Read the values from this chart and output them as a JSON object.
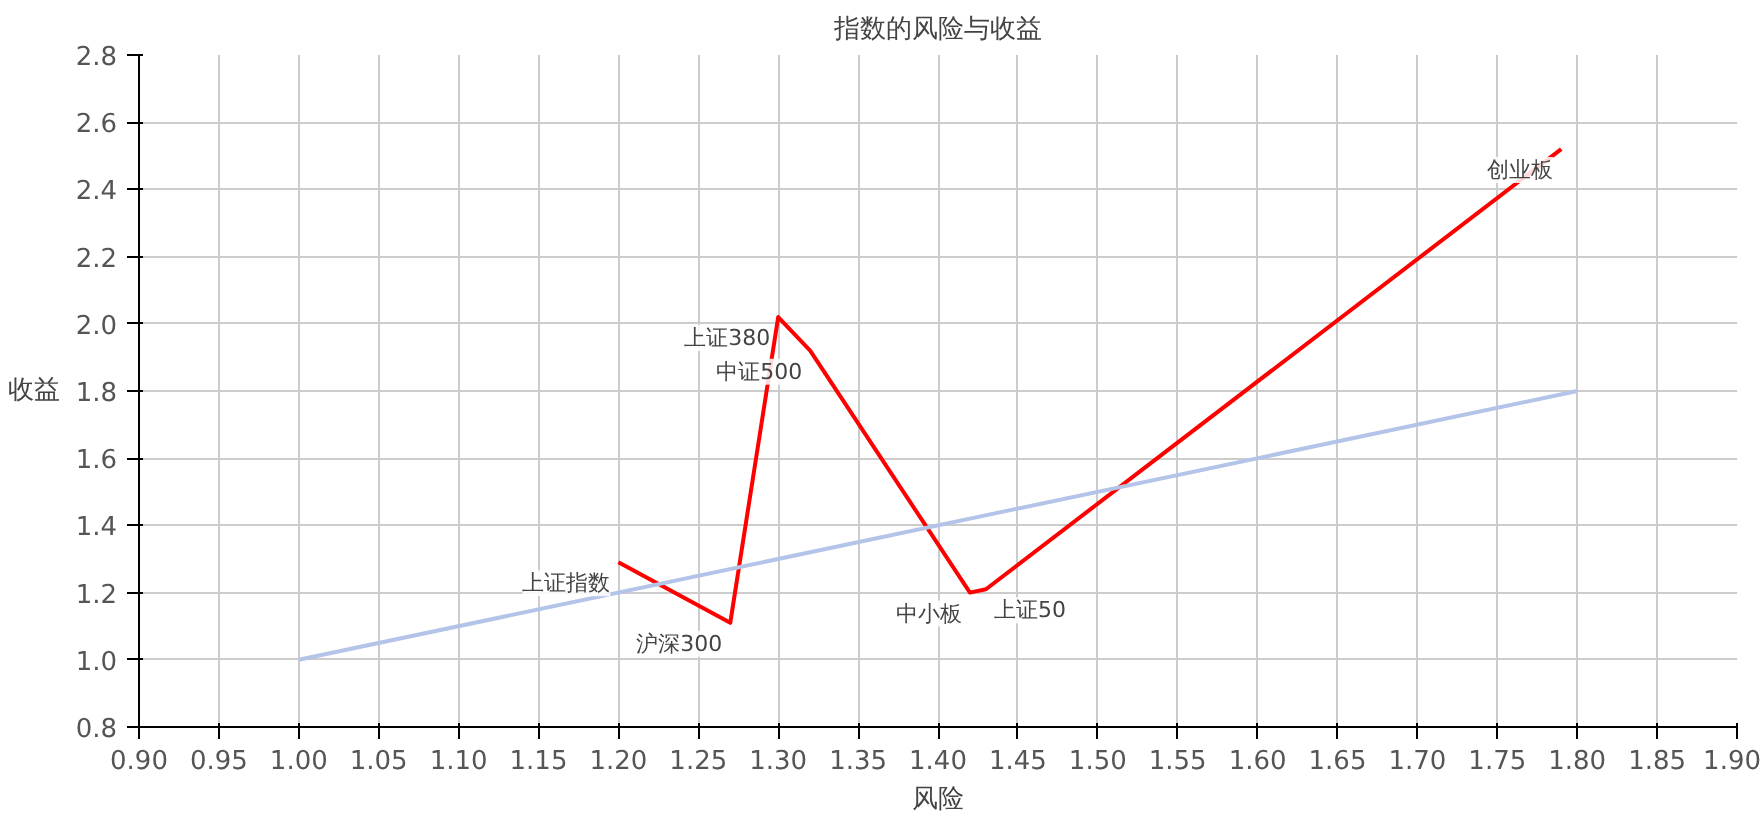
{
  "chart_data": {
    "type": "line",
    "title": "指数的风险与收益",
    "xlabel": "风险",
    "ylabel": "收益",
    "series": [
      {
        "color": "#ff0000",
        "x": [
          1.2,
          1.27,
          1.3,
          1.32,
          1.42,
          1.43,
          1.79
        ],
        "values": [
          1.29,
          1.11,
          2.02,
          1.92,
          1.2,
          1.21,
          2.52
        ]
      },
      {
        "color": "#b4c3e8",
        "x": [
          1.0,
          1.8
        ],
        "values": [
          1.0,
          1.8
        ]
      }
    ],
    "annotations": [
      {
        "text": "上证指数",
        "x": 1.2,
        "y": 1.29
      },
      {
        "text": "沪深300",
        "x": 1.27,
        "y": 1.11
      },
      {
        "text": "上证380",
        "x": 1.3,
        "y": 2.02
      },
      {
        "text": "中证500",
        "x": 1.32,
        "y": 1.92
      },
      {
        "text": "中小板",
        "x": 1.42,
        "y": 1.2
      },
      {
        "text": "上证50",
        "x": 1.43,
        "y": 1.21
      },
      {
        "text": "创业板",
        "x": 1.79,
        "y": 2.52
      }
    ],
    "xlim": [
      0.9,
      1.9
    ],
    "xticks": [
      {
        "value": 0.9,
        "label": "0.90"
      },
      0.95,
      {
        "value": 1.0,
        "label": "1.00"
      },
      1.05,
      {
        "value": 1.1,
        "label": "1.10"
      },
      1.15,
      {
        "value": 1.2,
        "label": "1.20"
      },
      1.25,
      {
        "value": 1.3,
        "label": "1.30"
      },
      1.35,
      {
        "value": 1.4,
        "label": "1.40"
      },
      1.45,
      {
        "value": 1.5,
        "label": "1.50"
      },
      1.55,
      {
        "value": 1.6,
        "label": "1.60"
      },
      1.65,
      {
        "value": 1.7,
        "label": "1.70"
      },
      1.75,
      {
        "value": 1.8,
        "label": "1.80"
      },
      1.85,
      {
        "value": 1.9,
        "label": "1.90"
      }
    ],
    "ylim": [
      0.8,
      2.8
    ],
    "yticks": [
      0.8,
      {
        "value": 1.0,
        "label": "1.0"
      },
      1.2,
      1.4,
      1.6,
      1.8,
      {
        "value": 2.0,
        "label": "2.0"
      },
      2.2,
      2.4,
      2.6,
      2.8
    ],
    "grid": true,
    "marker": "none",
    "line_style": "solid"
  }
}
